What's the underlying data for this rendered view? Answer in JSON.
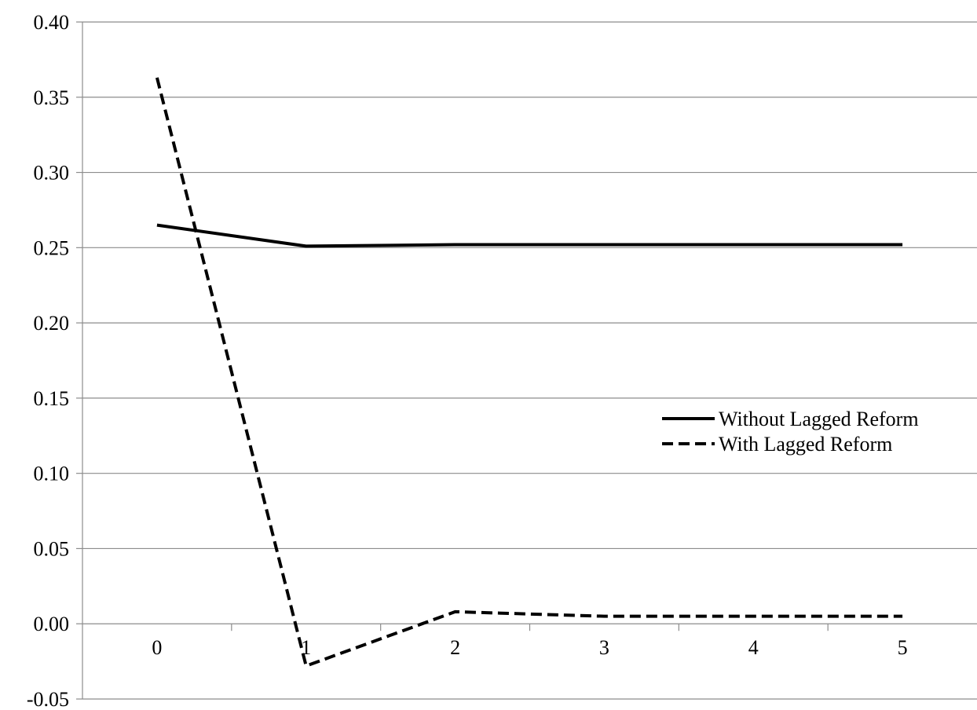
{
  "chart_data": {
    "type": "line",
    "title": "",
    "xlabel": "",
    "ylabel": "",
    "categories": [
      "0",
      "1",
      "2",
      "3",
      "4",
      "5"
    ],
    "ylim": [
      -0.05,
      0.4
    ],
    "yticks": [
      -0.05,
      0.0,
      0.05,
      0.1,
      0.15,
      0.2,
      0.25,
      0.3,
      0.35,
      0.4
    ],
    "ytick_labels": [
      "-0.05",
      "0.00",
      "0.05",
      "0.10",
      "0.15",
      "0.20",
      "0.25",
      "0.30",
      "0.35",
      "0.40"
    ],
    "grid": "horizontal",
    "legend_position": "right",
    "series": [
      {
        "name": "Without Lagged Reform",
        "style": "solid",
        "color": "#000000",
        "values": [
          0.265,
          0.251,
          0.252,
          0.252,
          0.252,
          0.252
        ]
      },
      {
        "name": "With Lagged Reform",
        "style": "dashed",
        "color": "#000000",
        "values": [
          0.363,
          -0.028,
          0.008,
          0.005,
          0.005,
          0.005
        ]
      }
    ]
  }
}
